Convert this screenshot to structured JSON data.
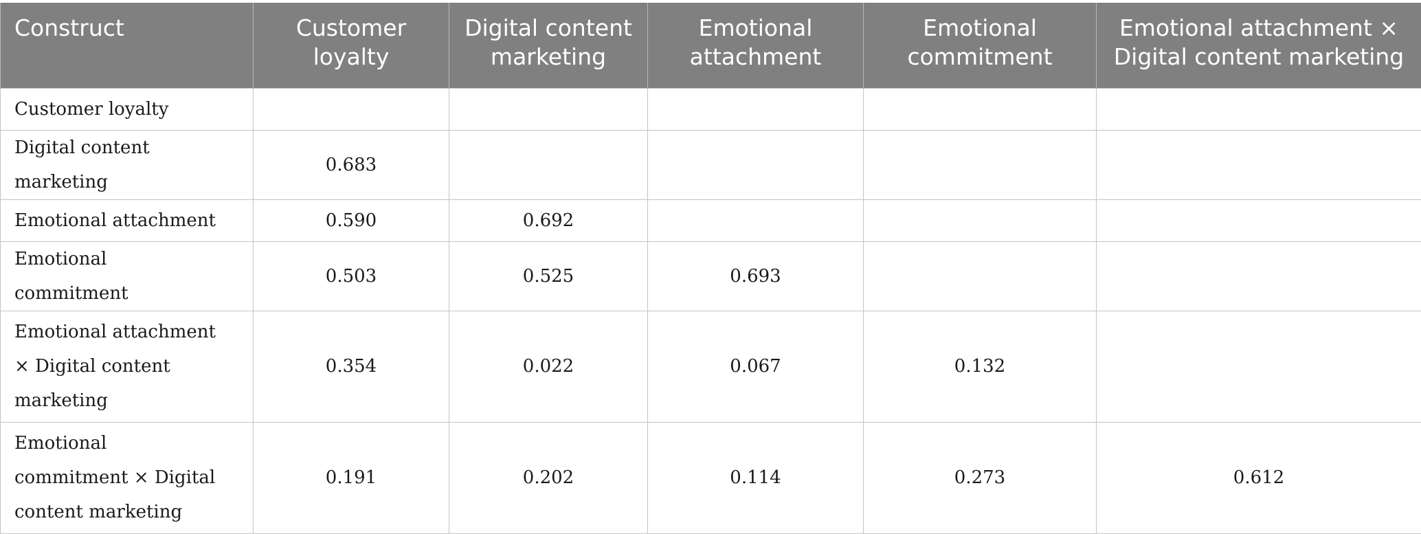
{
  "table": {
    "headers": [
      "Construct",
      "Customer loyalty",
      "Digital content marketing",
      "Emotional attachment",
      "Emotional commitment",
      "Emotional attachment × Digital content marketing"
    ],
    "rows": [
      {
        "label": "Customer loyalty",
        "cells": [
          "",
          "",
          "",
          "",
          ""
        ]
      },
      {
        "label": "Digital content marketing",
        "cells": [
          "0.683",
          "",
          "",
          "",
          ""
        ]
      },
      {
        "label": "Emotional attachment",
        "cells": [
          "0.590",
          "0.692",
          "",
          "",
          ""
        ]
      },
      {
        "label": "Emotional commitment",
        "cells": [
          "0.503",
          "0.525",
          "0.693",
          "",
          ""
        ]
      },
      {
        "label": "Emotional attachment × Digital content marketing",
        "cells": [
          "0.354",
          "0.022",
          "0.067",
          "0.132",
          ""
        ]
      },
      {
        "label": "Emotional commitment × Digital content marketing",
        "cells": [
          "0.191",
          "0.202",
          "0.114",
          "0.273",
          "0.612"
        ]
      }
    ]
  }
}
